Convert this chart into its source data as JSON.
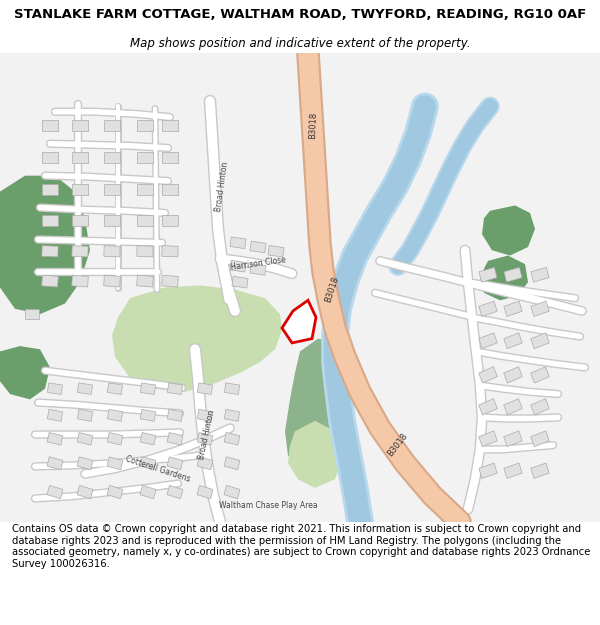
{
  "title": "STANLAKE FARM COTTAGE, WALTHAM ROAD, TWYFORD, READING, RG10 0AF",
  "subtitle": "Map shows position and indicative extent of the property.",
  "footer": "Contains OS data © Crown copyright and database right 2021. This information is subject to Crown copyright and database rights 2023 and is reproduced with the permission of HM Land Registry. The polygons (including the associated geometry, namely x, y co-ordinates) are subject to Crown copyright and database rights 2023 Ordnance Survey 100026316.",
  "bg_color": "#ffffff",
  "map_bg": "#f2f2f2",
  "road_color": "#f5c8a8",
  "road_outline": "#d8a888",
  "green_dark": "#6a9e6a",
  "green_light": "#c8ddb0",
  "water_color": "#a8cce0",
  "building_fill": "#e0e0e0",
  "building_stroke": "#aaaaaa",
  "property_stroke": "#dd0000",
  "property_fill": "#ffffff",
  "title_fontsize": 9.5,
  "subtitle_fontsize": 8.5,
  "footer_fontsize": 7.2
}
